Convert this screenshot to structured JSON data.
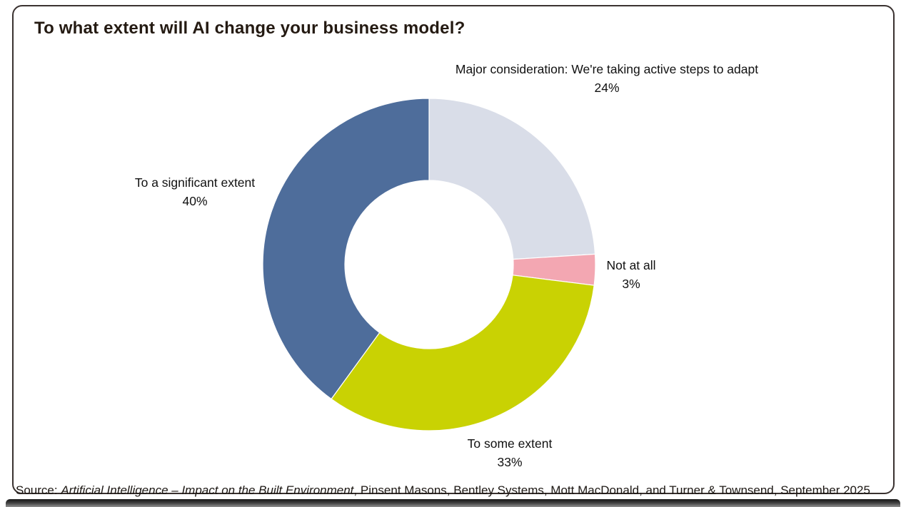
{
  "title": "To what extent will AI change your business model?",
  "source": {
    "prefix": "Source: ",
    "italic_title": "Artificial Intelligence – Impact on the Built Environment",
    "rest": ", Pinsent Masons, Bentley Systems, Mott MacDonald, and Turner & Townsend, September 2025"
  },
  "colors": {
    "card_border": "#3a3230",
    "title_text": "#241a12",
    "label_text": "#111111"
  },
  "chart_data": {
    "type": "pie",
    "subtype": "donut",
    "title": "To what extent will AI change your business model?",
    "start_angle": "top",
    "direction": "clockwise",
    "inner_radius_ratio": 0.506,
    "legend_position": "none (direct labels around donut)",
    "slices": [
      {
        "label": "Major consideration: We're taking active steps to adapt",
        "value": 24,
        "pct": "24%",
        "color": "#d9dde8"
      },
      {
        "label": "Not at all",
        "value": 3,
        "pct": "3%",
        "color": "#f3a7b2"
      },
      {
        "label": "To some extent",
        "value": 33,
        "pct": "33%",
        "color": "#c9d203"
      },
      {
        "label": "To a significant extent",
        "value": 40,
        "pct": "40%",
        "color": "#4e6d9b"
      }
    ]
  }
}
